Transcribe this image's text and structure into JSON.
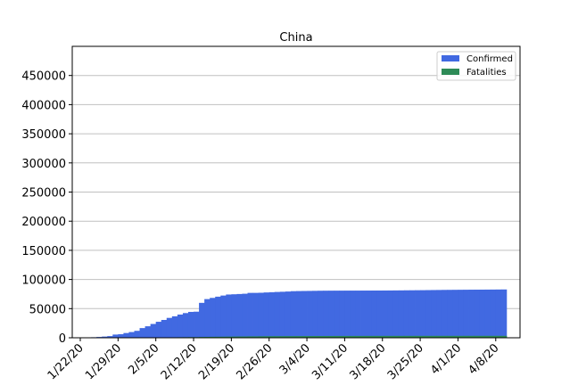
{
  "chart_data": {
    "type": "bar",
    "title": "China",
    "xlabel": "",
    "ylabel": "",
    "ylim": [
      0,
      500000
    ],
    "yticks": [
      0,
      50000,
      100000,
      150000,
      200000,
      250000,
      300000,
      350000,
      400000,
      450000
    ],
    "yticklabels": [
      "0",
      "50000",
      "100000",
      "150000",
      "200000",
      "250000",
      "300000",
      "350000",
      "400000",
      "450000"
    ],
    "xticklabels": [
      "1/22/20",
      "1/29/20",
      "2/5/20",
      "2/12/20",
      "2/19/20",
      "2/26/20",
      "3/4/20",
      "3/11/20",
      "3/18/20",
      "3/25/20",
      "4/1/20",
      "4/8/20"
    ],
    "categories": [
      "1/22/20",
      "1/23/20",
      "1/24/20",
      "1/25/20",
      "1/26/20",
      "1/27/20",
      "1/28/20",
      "1/29/20",
      "1/30/20",
      "1/31/20",
      "2/1/20",
      "2/2/20",
      "2/3/20",
      "2/4/20",
      "2/5/20",
      "2/6/20",
      "2/7/20",
      "2/8/20",
      "2/9/20",
      "2/10/20",
      "2/11/20",
      "2/12/20",
      "2/13/20",
      "2/14/20",
      "2/15/20",
      "2/16/20",
      "2/17/20",
      "2/18/20",
      "2/19/20",
      "2/20/20",
      "2/21/20",
      "2/22/20",
      "2/23/20",
      "2/24/20",
      "2/25/20",
      "2/26/20",
      "2/27/20",
      "2/28/20",
      "2/29/20",
      "3/1/20",
      "3/2/20",
      "3/3/20",
      "3/4/20",
      "3/5/20",
      "3/6/20",
      "3/7/20",
      "3/8/20",
      "3/9/20",
      "3/10/20",
      "3/11/20",
      "3/12/20",
      "3/13/20",
      "3/14/20",
      "3/15/20",
      "3/16/20",
      "3/17/20",
      "3/18/20",
      "3/19/20",
      "3/20/20",
      "3/21/20",
      "3/22/20",
      "3/23/20",
      "3/24/20",
      "3/25/20",
      "3/26/20",
      "3/27/20",
      "3/28/20",
      "3/29/20",
      "3/30/20",
      "3/31/20",
      "4/1/20",
      "4/2/20",
      "4/3/20",
      "4/4/20",
      "4/5/20",
      "4/6/20",
      "4/7/20",
      "4/8/20",
      "4/9/20"
    ],
    "series": [
      {
        "name": "Confirmed",
        "color": "#4169e1",
        "values": [
          548,
          643,
          920,
          1406,
          2075,
          2877,
          5509,
          6087,
          8141,
          9802,
          11891,
          16630,
          19716,
          23707,
          27440,
          30587,
          34110,
          36814,
          39829,
          42354,
          44386,
          44759,
          59895,
          66358,
          68413,
          70513,
          72434,
          74211,
          74619,
          75077,
          75550,
          77001,
          77022,
          77241,
          77754,
          78166,
          78600,
          78928,
          79356,
          79932,
          80136,
          80261,
          80386,
          80537,
          80690,
          80770,
          80823,
          80860,
          80887,
          80921,
          80932,
          80945,
          80977,
          81003,
          81033,
          81058,
          81102,
          81156,
          81250,
          81305,
          81435,
          81498,
          81591,
          81661,
          81782,
          81897,
          81999,
          82122,
          82198,
          82279,
          82361,
          82432,
          82511,
          82543,
          82602,
          82665,
          82718,
          82809,
          82883
        ]
      },
      {
        "name": "Fatalities",
        "color": "#2e8b57",
        "values": [
          17,
          18,
          26,
          42,
          56,
          82,
          131,
          133,
          171,
          213,
          259,
          361,
          425,
          491,
          563,
          633,
          718,
          805,
          905,
          1012,
          1112,
          1117,
          1369,
          1521,
          1663,
          1766,
          1864,
          2003,
          2116,
          2238,
          2238,
          2443,
          2445,
          2595,
          2665,
          2717,
          2746,
          2790,
          2837,
          2872,
          2914,
          2947,
          2983,
          3015,
          3044,
          3072,
          3100,
          3123,
          3139,
          3161,
          3172,
          3180,
          3193,
          3203,
          3217,
          3230,
          3241,
          3249,
          3253,
          3259,
          3274,
          3274,
          3281,
          3285,
          3291,
          3296,
          3299,
          3304,
          3308,
          3309,
          3316,
          3322,
          3326,
          3330,
          3333,
          3335,
          3335,
          3337,
          3339
        ]
      }
    ],
    "legend": {
      "placement": "top-right",
      "entries": [
        "Confirmed",
        "Fatalities"
      ]
    },
    "grid": {
      "y": true,
      "x": false,
      "color": "#c0c0c0"
    }
  }
}
